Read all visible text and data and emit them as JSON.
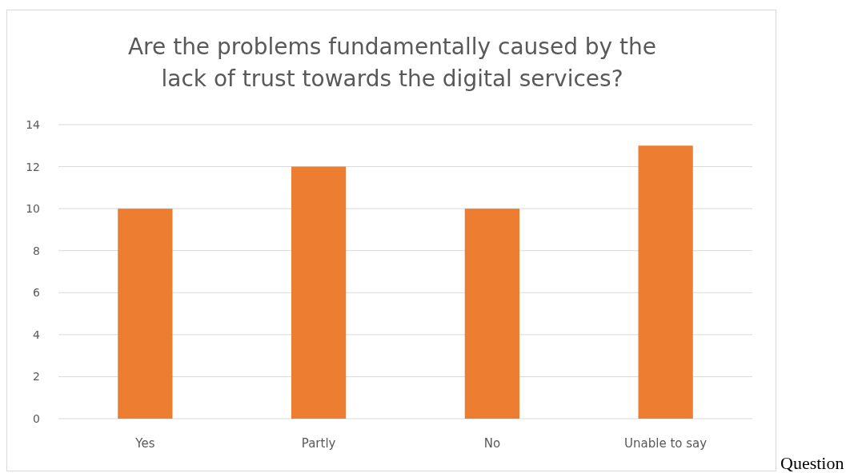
{
  "chart_data": {
    "type": "bar",
    "title": "Are the problems fundamentally caused by the\nlack of trust towards the digital services?",
    "categories": [
      "Yes",
      "Partly",
      "No",
      "Unable to say"
    ],
    "values": [
      10,
      12,
      10,
      13
    ],
    "color": "#ed7d31",
    "ylim": [
      0,
      14
    ],
    "yticks": [
      0,
      2,
      4,
      6,
      8,
      10,
      12,
      14
    ],
    "grid": "y",
    "annotations": [
      "Question"
    ]
  }
}
